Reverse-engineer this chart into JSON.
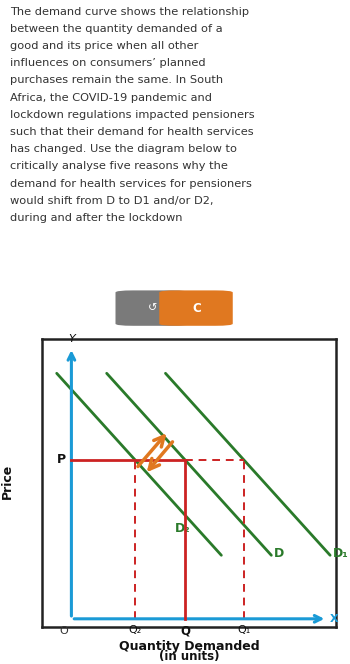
{
  "title_text": "The demand curve shows the relationship\nbetween the quantity demanded of a\ngood and its price when all other\ninfluences on consumers’ planned\npurchases remain the same. In South\nAfrica, the COVID-19 pandemic and\nlockdown regulations impacted pensioners\nsuch that their demand for health services\nhas changed. Use the diagram below to\ncritically analyse five reasons why the\ndemand for health services for pensioners\nwould shift from D to D1 and/or D2,\nduring and after the lockdown",
  "background_color": "#ffffff",
  "text_color": "#333333",
  "btn1_color": "#7a7a7a",
  "btn2_color": "#e07820",
  "chart_bg": "#ffffff",
  "chart_border": "#222222",
  "axis_color": "#1a9ad6",
  "D_color": "#2a7a2a",
  "dashed_color": "#cc2222",
  "solid_red": "#cc2222",
  "arrow_color": "#e07820",
  "P_label": "P",
  "Q_label": "Q",
  "Q1_label": "Q₁",
  "Q2_label": "Q₂",
  "D_label": "D",
  "D1_label": "D₁",
  "D2_label": "D₂",
  "x_axis_label_line1": "Quantity Demanded",
  "x_axis_label_line2": "(in units)",
  "y_axis_label": "Price",
  "x_label_top": "X",
  "y_label_top": "Y",
  "origin_label": "O"
}
